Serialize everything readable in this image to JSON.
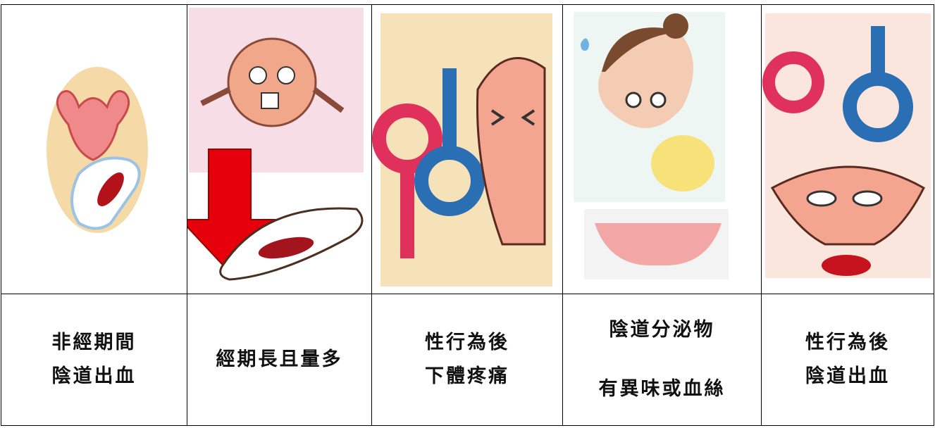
{
  "table": {
    "cells": [
      {
        "lines": [
          "非經期間",
          "陰道出血"
        ]
      },
      {
        "lines": [
          "經期長且量多"
        ]
      },
      {
        "lines": [
          "性行為後",
          "下體疼痛"
        ]
      },
      {
        "lines": [
          "陰道分泌物",
          "有異味或血絲"
        ]
      },
      {
        "lines": [
          "性行為後",
          "陰道出血"
        ]
      }
    ]
  }
}
